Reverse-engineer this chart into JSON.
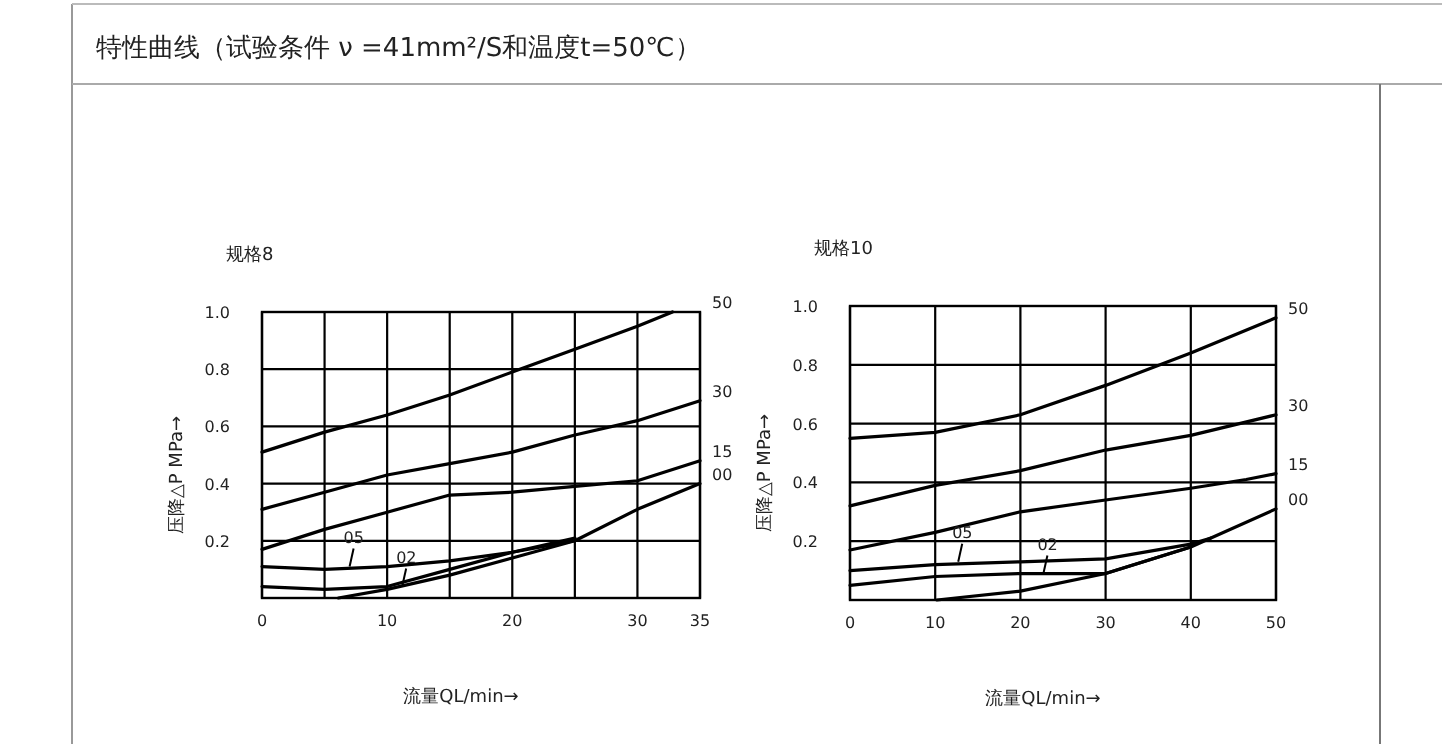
{
  "chart_data": [
    {
      "type": "line",
      "title": "特性曲线（试验条件 ν =41mm²/S和温度t=50℃）",
      "subtitle": "规格8",
      "xlabel": "流量QL/min→",
      "ylabel": "压降△P MPa→",
      "xlim": [
        0,
        35
      ],
      "ylim": [
        0,
        1
      ],
      "xticks": [
        0,
        {
          "value": 5,
          "label": null
        },
        10,
        {
          "value": 15,
          "label": null
        },
        20,
        {
          "value": 25,
          "label": null
        },
        30,
        35
      ],
      "yticks": [
        0.2,
        0.4,
        0.6,
        0.8,
        {
          "value": 1,
          "label": "1.0"
        }
      ],
      "grid": true,
      "marker": "none",
      "line_style": "solid",
      "series": [
        {
          "name": "50",
          "color": "#000000",
          "x": [
            0,
            5,
            10,
            15,
            20,
            25,
            30,
            32.8
          ],
          "values": [
            0.51,
            0.58,
            0.64,
            0.71,
            0.79,
            0.87,
            0.95,
            1.0
          ]
        },
        {
          "name": "30",
          "color": "#000000",
          "x": [
            0,
            5,
            10,
            15,
            20,
            25,
            30,
            35
          ],
          "values": [
            0.31,
            0.37,
            0.43,
            0.47,
            0.51,
            0.57,
            0.62,
            0.69
          ]
        },
        {
          "name": "15",
          "color": "#000000",
          "x": [
            0,
            5,
            10,
            15,
            20,
            25,
            30,
            35
          ],
          "values": [
            0.17,
            0.24,
            0.3,
            0.36,
            0.37,
            0.39,
            0.41,
            0.48
          ]
        },
        {
          "name": "00",
          "color": "#000000",
          "x": [
            6.1,
            10,
            15,
            20,
            25,
            30,
            35
          ],
          "values": [
            0,
            0.03,
            0.08,
            0.14,
            0.2,
            0.31,
            0.4
          ]
        },
        {
          "color": "#000000",
          "x": [
            0,
            5,
            10,
            15,
            20,
            25
          ],
          "values": [
            0.11,
            0.1,
            0.11,
            0.13,
            0.16,
            0.21
          ]
        },
        {
          "color": "#000000",
          "x": [
            0,
            5,
            10,
            15,
            20,
            25
          ],
          "values": [
            0.04,
            0.03,
            0.04,
            0.1,
            0.16,
            0.2
          ]
        }
      ],
      "annotations": [
        {
          "text": "05",
          "x": 7,
          "y": 0.11
        },
        {
          "text": "02",
          "x": 11.2,
          "y": 0.04
        }
      ]
    },
    {
      "type": "line",
      "subtitle": "规格10",
      "xlabel": "流量QL/min→",
      "ylabel": "压降△P MPa→",
      "xlim": [
        0,
        50
      ],
      "ylim": [
        0,
        1
      ],
      "xticks": [
        0,
        10,
        20,
        30,
        40,
        50
      ],
      "yticks": [
        0.2,
        0.4,
        0.6,
        0.8,
        {
          "value": 1,
          "label": "1.0"
        }
      ],
      "grid": true,
      "marker": "none",
      "line_style": "solid",
      "series": [
        {
          "name": "50",
          "color": "#000000",
          "x": [
            0,
            10,
            20,
            30,
            40,
            50
          ],
          "values": [
            0.55,
            0.57,
            0.63,
            0.73,
            0.84,
            0.96
          ]
        },
        {
          "name": "30",
          "color": "#000000",
          "x": [
            0,
            10,
            20,
            30,
            40,
            50
          ],
          "values": [
            0.32,
            0.39,
            0.44,
            0.51,
            0.56,
            0.63
          ]
        },
        {
          "name": "15",
          "color": "#000000",
          "x": [
            0,
            10,
            20,
            30,
            40,
            46.5,
            50
          ],
          "values": [
            0.17,
            0.23,
            0.3,
            0.34,
            0.38,
            0.41,
            0.43
          ]
        },
        {
          "name": "00",
          "color": "#000000",
          "x": [
            10.2,
            20,
            30,
            40,
            50
          ],
          "values": [
            0,
            0.03,
            0.09,
            0.18,
            0.31
          ]
        },
        {
          "color": "#000000",
          "x": [
            0,
            10,
            20,
            30,
            40,
            42.3
          ],
          "values": [
            0.1,
            0.12,
            0.13,
            0.14,
            0.19,
            0.21
          ]
        },
        {
          "color": "#000000",
          "x": [
            0,
            10,
            20,
            30,
            40
          ],
          "values": [
            0.05,
            0.08,
            0.09,
            0.09,
            0.18
          ]
        }
      ],
      "annotations": [
        {
          "text": "05",
          "x": 12.7,
          "y": 0.13
        },
        {
          "text": "02",
          "x": 22.7,
          "y": 0.09
        }
      ]
    }
  ]
}
